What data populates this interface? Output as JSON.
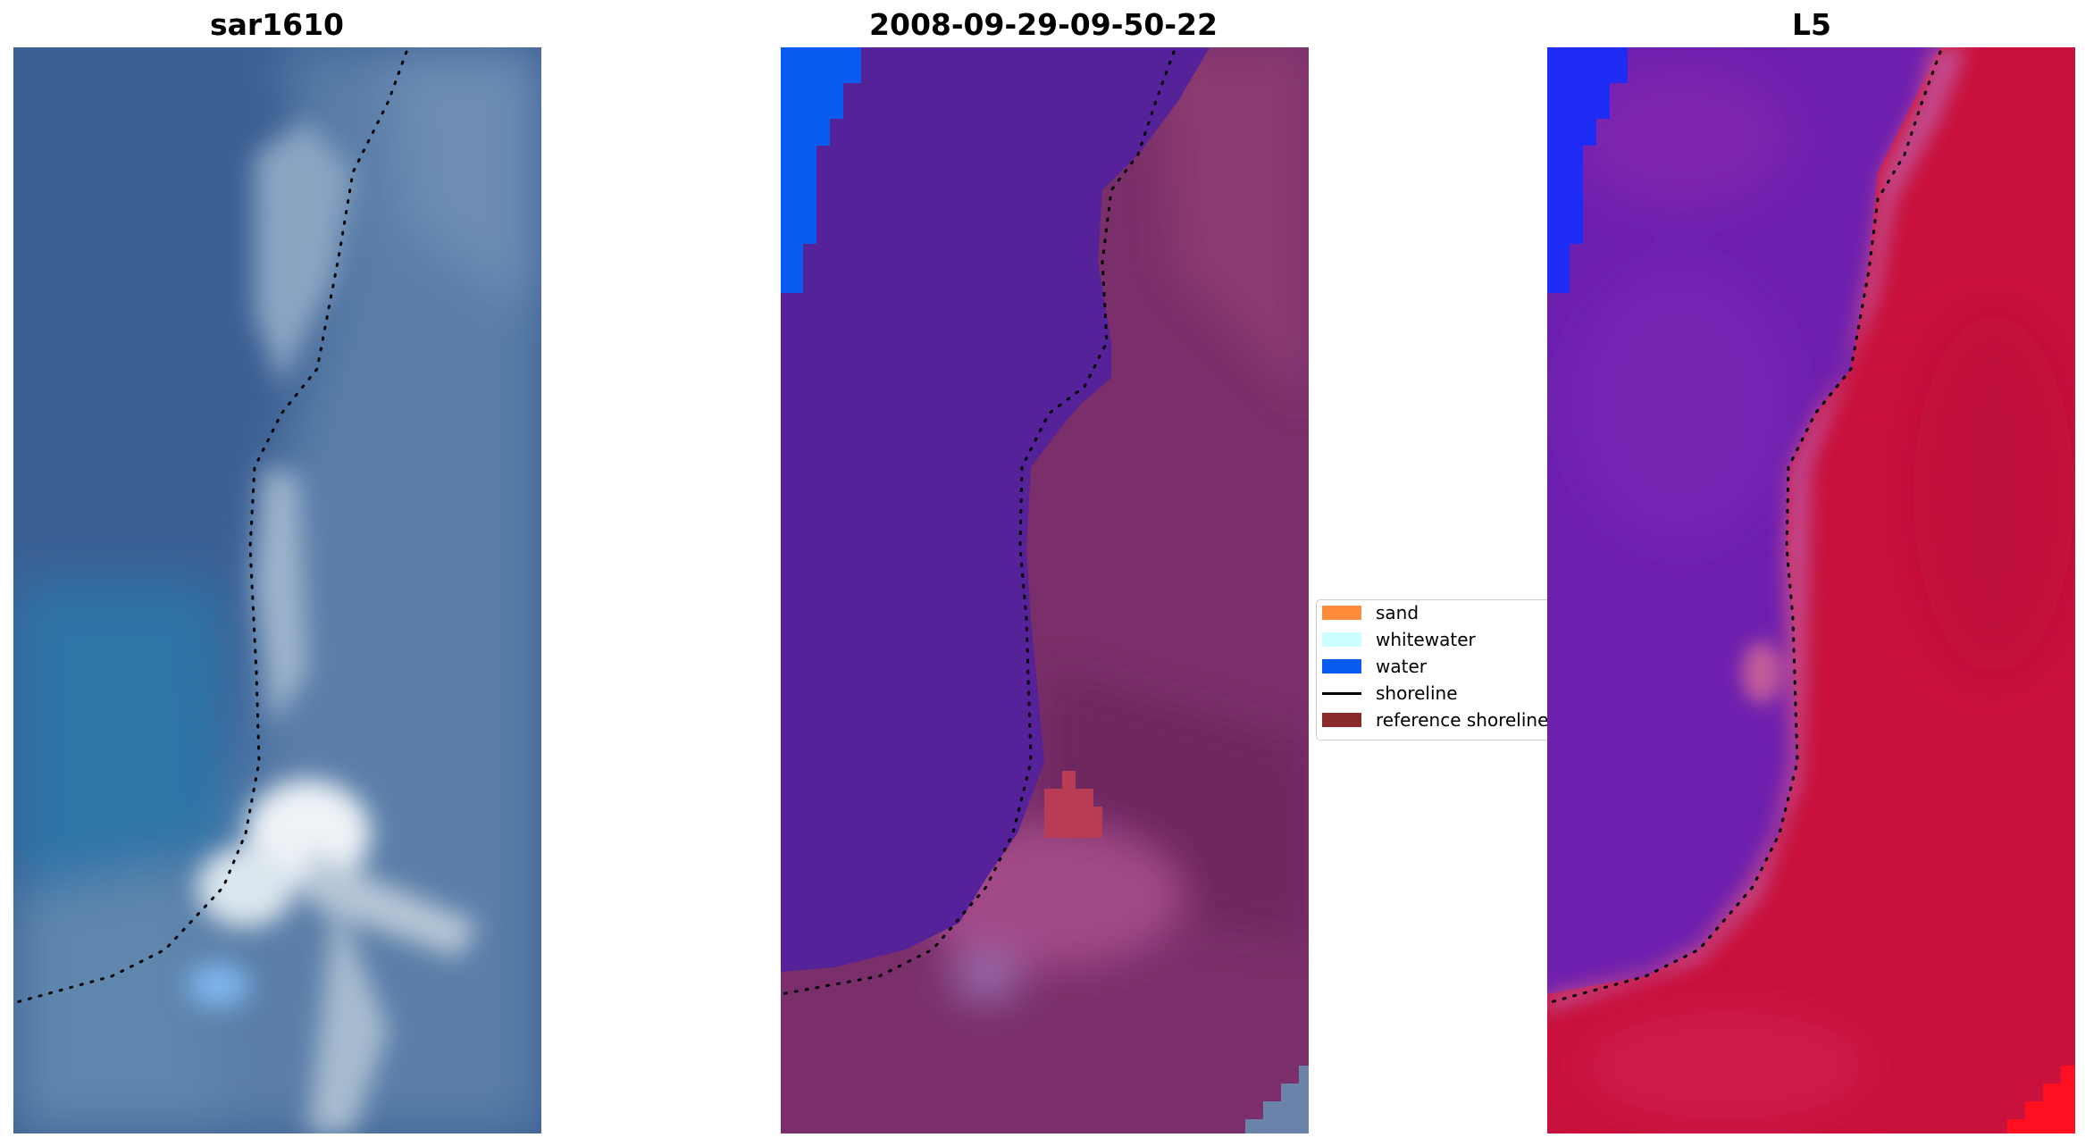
{
  "panels": [
    {
      "title": "sar1610"
    },
    {
      "title": "2008-09-29-09-50-22"
    },
    {
      "title": "L5"
    }
  ],
  "legend": {
    "items": [
      {
        "label": "sand",
        "color": "#ff8c3a",
        "kind": "patch"
      },
      {
        "label": "whitewater",
        "color": "#ccffff",
        "kind": "patch"
      },
      {
        "label": "water",
        "color": "#0a5cf0",
        "kind": "patch"
      },
      {
        "label": "shoreline",
        "color": "#000000",
        "kind": "line"
      },
      {
        "label": "reference shoreline",
        "color": "#8b2a2a",
        "kind": "patch"
      }
    ]
  },
  "colors": {
    "sar_sea": "#3d6b9a",
    "class_water_overlay": "#55229a",
    "class_land": "#7a2f6a",
    "index_water": "#7a1fb0",
    "index_land": "#c8113c",
    "water_class": "#0a5cf0"
  }
}
